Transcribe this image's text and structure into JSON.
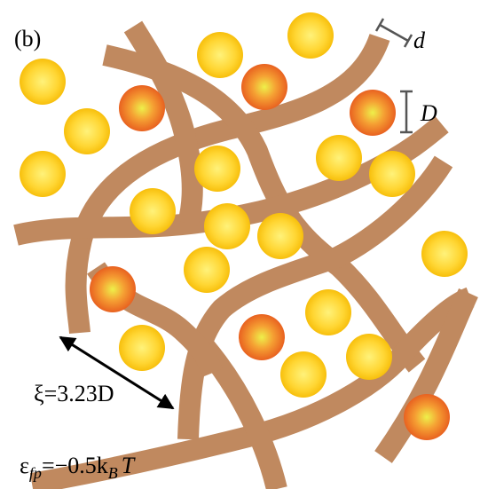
{
  "panel_label": "(b)",
  "scale_labels": {
    "fiber_width": "d",
    "particle_diameter": "D"
  },
  "mesh_size_label": "ξ=3.23D",
  "interaction_label": {
    "symbol": "ε",
    "subscript": "fp",
    "equals": "=−0.5k",
    "boltzmann_subscript": "B",
    "temperature": "T"
  }
}
